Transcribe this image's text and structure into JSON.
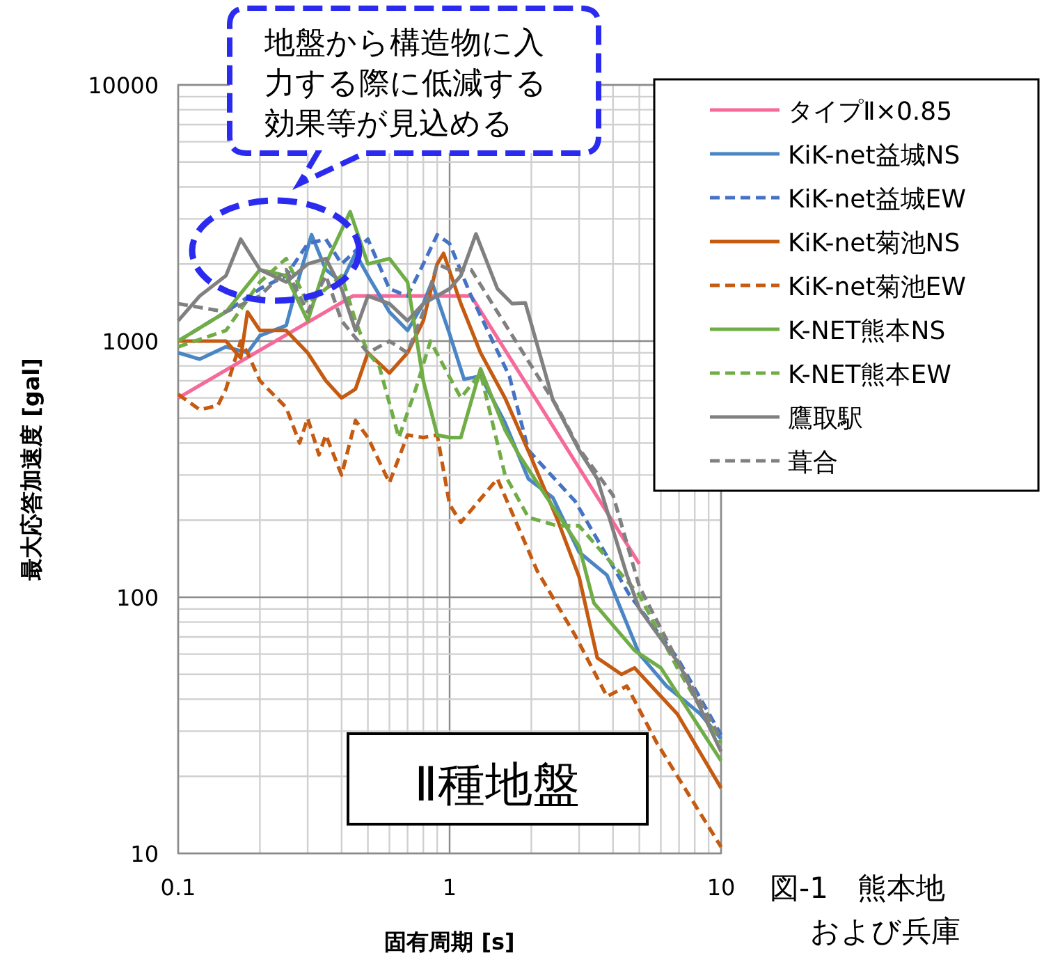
{
  "chart_data": {
    "type": "line",
    "xlabel": "固有周期 [s]",
    "ylabel": "最大応答加速度 [gal]",
    "log": "xy",
    "grid": true,
    "legend": "top right",
    "xlim": [
      0.1,
      10
    ],
    "xticks": [
      0.1,
      1,
      10
    ],
    "ylim": [
      10,
      10000
    ],
    "yticks": [
      10,
      100,
      1000,
      10000
    ],
    "annotations": [
      "地盤から構造物に入力する際に低減する効果等が見込める",
      "Ⅱ種地盤",
      "図-1　熊本地",
      "および兵庫"
    ],
    "series": [
      {
        "name": "タイプⅡ×0.85",
        "color": "#f7699b",
        "line_style": "solid",
        "x": [
          0.1,
          0.44,
          1.2,
          5
        ],
        "values": [
          600,
          1500,
          1500,
          135
        ]
      },
      {
        "name": "KiK-net益城NS",
        "color": "#4a86c5",
        "line_style": "solid",
        "x": [
          0.1,
          0.12,
          0.15,
          0.18,
          0.2,
          0.25,
          0.28,
          0.31,
          0.35,
          0.4,
          0.45,
          0.5,
          0.6,
          0.7,
          0.8,
          0.86,
          1.0,
          1.13,
          1.3,
          1.6,
          1.95,
          2.4,
          3.0,
          3.8,
          5,
          6.3,
          8.4,
          10
        ],
        "values": [
          900,
          850,
          950,
          900,
          1050,
          1150,
          1800,
          2600,
          1900,
          1700,
          2200,
          1800,
          1300,
          1100,
          1400,
          1700,
          1065,
          710,
          730,
          480,
          290,
          245,
          150,
          122,
          60,
          45,
          35,
          28
        ]
      },
      {
        "name": "KiK-net益城EW",
        "color": "#4472c4",
        "line_style": "dashed",
        "x": [
          0.1,
          0.15,
          0.2,
          0.25,
          0.3,
          0.35,
          0.4,
          0.5,
          0.6,
          0.7,
          0.8,
          0.9,
          1.0,
          1.2,
          1.66,
          1.95,
          2.9,
          4.6,
          6.9,
          10
        ],
        "values": [
          1000,
          1300,
          1600,
          1800,
          2400,
          2500,
          2000,
          2500,
          1600,
          1500,
          2000,
          2600,
          2400,
          1500,
          730,
          375,
          237,
          102,
          58,
          29
        ]
      },
      {
        "name": "KiK-net菊池NS",
        "color": "#c55a11",
        "line_style": "solid",
        "x": [
          0.1,
          0.12,
          0.15,
          0.17,
          0.18,
          0.2,
          0.25,
          0.3,
          0.35,
          0.4,
          0.45,
          0.5,
          0.6,
          0.7,
          0.8,
          0.9,
          0.95,
          1.1,
          1.3,
          1.6,
          2,
          2.5,
          3,
          3.5,
          4.3,
          4.8,
          6.9,
          10
        ],
        "values": [
          1000,
          1000,
          1000,
          860,
          1300,
          1100,
          1100,
          900,
          700,
          600,
          650,
          900,
          750,
          900,
          1200,
          2000,
          2200,
          1400,
          900,
          600,
          350,
          200,
          120,
          58,
          50,
          53,
          35,
          18
        ]
      },
      {
        "name": "KiK-net菊池EW",
        "color": "#c55a11",
        "line_style": "dashed",
        "x": [
          0.1,
          0.12,
          0.14,
          0.15,
          0.17,
          0.18,
          0.2,
          0.25,
          0.28,
          0.3,
          0.33,
          0.35,
          0.4,
          0.45,
          0.5,
          0.6,
          0.7,
          0.8,
          0.9,
          1.0,
          1.1,
          1.5,
          2.1,
          2.9,
          3.8,
          4.5,
          5.8,
          10
        ],
        "values": [
          620,
          540,
          560,
          650,
          1000,
          900,
          700,
          550,
          400,
          500,
          360,
          430,
          300,
          490,
          420,
          280,
          430,
          420,
          430,
          230,
          196,
          290,
          127,
          71,
          41,
          45,
          27,
          10.6
        ]
      },
      {
        "name": "K-NET熊本NS",
        "color": "#70ad47",
        "line_style": "solid",
        "x": [
          0.1,
          0.15,
          0.2,
          0.25,
          0.3,
          0.35,
          0.43,
          0.5,
          0.6,
          0.7,
          0.8,
          0.9,
          1.0,
          1.1,
          1.3,
          1.6,
          1.8,
          2.2,
          3,
          3.4,
          4.8,
          6,
          10
        ],
        "values": [
          1000,
          1300,
          1900,
          1800,
          1200,
          2000,
          3200,
          2000,
          2100,
          1700,
          700,
          430,
          420,
          420,
          780,
          450,
          360,
          260,
          158,
          95,
          62,
          53,
          23
        ]
      },
      {
        "name": "K-NET熊本EW",
        "color": "#70ad47",
        "line_style": "dashed",
        "x": [
          0.1,
          0.15,
          0.2,
          0.25,
          0.3,
          0.35,
          0.4,
          0.45,
          0.5,
          0.55,
          0.65,
          0.75,
          0.85,
          0.95,
          1.1,
          1.3,
          1.6,
          1.95,
          2.5,
          3,
          5,
          6.9,
          10
        ],
        "values": [
          950,
          1100,
          1700,
          2100,
          1400,
          1600,
          1800,
          1200,
          900,
          800,
          420,
          650,
          1000,
          800,
          600,
          750,
          300,
          205,
          190,
          190,
          102,
          53,
          27
        ]
      },
      {
        "name": "鷹取駅",
        "color": "#808080",
        "line_style": "solid",
        "x": [
          0.1,
          0.12,
          0.15,
          0.17,
          0.2,
          0.25,
          0.3,
          0.35,
          0.4,
          0.45,
          0.5,
          0.6,
          0.7,
          0.8,
          1.0,
          1.1,
          1.25,
          1.5,
          1.7,
          1.9,
          2.4,
          3,
          3.5,
          4.5,
          5,
          7,
          10
        ],
        "values": [
          1200,
          1500,
          1800,
          2500,
          1900,
          1700,
          2000,
          2100,
          1600,
          1100,
          1500,
          1400,
          1200,
          1400,
          1600,
          1800,
          2620,
          1600,
          1400,
          1410,
          590,
          375,
          290,
          122,
          90,
          55,
          25
        ]
      },
      {
        "name": "葺合",
        "color": "#808080",
        "line_style": "dashed",
        "x": [
          0.1,
          0.15,
          0.2,
          0.25,
          0.3,
          0.35,
          0.4,
          0.5,
          0.6,
          0.7,
          0.8,
          0.9,
          1.0,
          1.2,
          1.5,
          2,
          2.5,
          3,
          4,
          5,
          7,
          10
        ],
        "values": [
          1400,
          1300,
          1500,
          1900,
          1300,
          1800,
          1200,
          900,
          1000,
          900,
          1300,
          2000,
          1900,
          1900,
          1300,
          800,
          550,
          380,
          250,
          110,
          55,
          28
        ]
      }
    ]
  }
}
